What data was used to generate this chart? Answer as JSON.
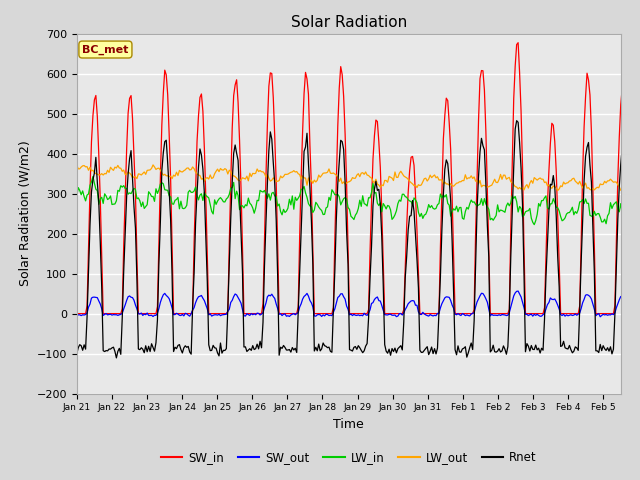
{
  "title": "Solar Radiation",
  "xlabel": "Time",
  "ylabel": "Solar Radiation (W/m2)",
  "ylim": [
    -200,
    700
  ],
  "annotation_text": "BC_met",
  "annotation_color": "#8B0000",
  "annotation_bg": "#FFFFA0",
  "colors": {
    "SW_in": "#FF0000",
    "SW_out": "#0000FF",
    "LW_in": "#00CC00",
    "LW_out": "#FFA500",
    "Rnet": "#000000"
  },
  "tick_labels": [
    "Jan 21",
    "Jan 22",
    "Jan 23",
    "Jan 24",
    "Jan 25",
    "Jan 26",
    "Jan 27",
    "Jan 28",
    "Jan 29",
    "Jan 30",
    "Jan 31",
    "Feb 1",
    "Feb 2",
    "Feb 3",
    "Feb 4",
    "Feb 5"
  ],
  "SW_in_peaks": [
    540,
    550,
    610,
    555,
    590,
    610,
    595,
    610,
    490,
    395,
    540,
    620,
    680,
    475,
    600,
    575
  ],
  "fig_bg": "#D8D8D8",
  "plot_bg": "#E8E8E8"
}
